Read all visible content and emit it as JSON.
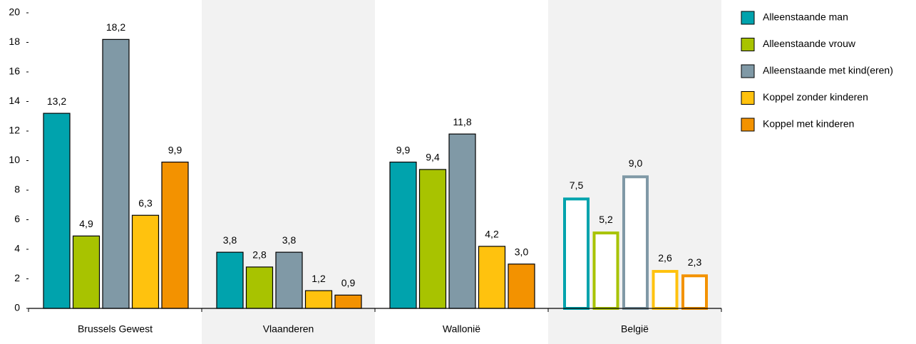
{
  "chart_data": {
    "type": "bar",
    "categories": [
      "Brussels Gewest",
      "Vlaanderen",
      "Wallonië",
      "België"
    ],
    "series": [
      {
        "name": "Alleenstaande man",
        "color": "#00a3ad",
        "values": [
          13.2,
          3.8,
          9.9,
          7.5
        ],
        "value_labels": [
          "13,2",
          "3,8",
          "9,9",
          "7,5"
        ]
      },
      {
        "name": "Alleenstaande vrouw",
        "color": "#a8c300",
        "values": [
          4.9,
          2.8,
          9.4,
          5.2
        ],
        "value_labels": [
          "4,9",
          "2,8",
          "9,4",
          "5,2"
        ]
      },
      {
        "name": "Alleenstaande met kind(eren)",
        "color": "#8099a6",
        "values": [
          18.2,
          3.8,
          11.8,
          9.0
        ],
        "value_labels": [
          "18,2",
          "3,8",
          "11,8",
          "9,0"
        ]
      },
      {
        "name": "Koppel zonder kinderen",
        "color": "#ffc20e",
        "values": [
          6.3,
          1.2,
          4.2,
          2.6
        ],
        "value_labels": [
          "6,3",
          "1,2",
          "4,2",
          "2,6"
        ]
      },
      {
        "name": "Koppel met kinderen",
        "color": "#f39200",
        "values": [
          9.9,
          0.9,
          3.0,
          2.3
        ],
        "value_labels": [
          "9,9",
          "0,9",
          "3,0",
          "2,3"
        ]
      }
    ],
    "outlined_categories": [
      3
    ],
    "ylim": [
      0,
      20
    ],
    "yticks": [
      0,
      2,
      4,
      6,
      8,
      10,
      12,
      14,
      16,
      18,
      20
    ],
    "legend": "right"
  }
}
